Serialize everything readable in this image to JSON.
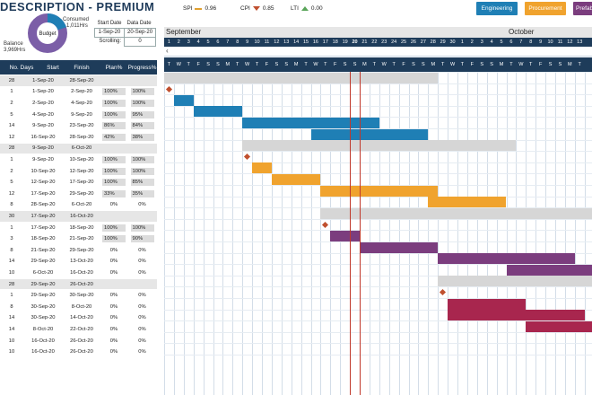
{
  "header": {
    "title": "DESCRIPTION - PREMIUM",
    "donut_label": "Budget",
    "consumed_label": "Consumed",
    "consumed_value": "1,011Hrs",
    "balance_label": "Balance",
    "balance_value": "3,969Hrs",
    "consumed_fraction": 0.2,
    "consumed_color": "#1f7fb5",
    "balance_color": "#7b5ea7"
  },
  "dates": {
    "start_label": "Start Date",
    "data_label": "Data Date",
    "start_value": "1-Sep-20",
    "data_value": "20-Sep-20",
    "scrolling_label": "Scrolling:",
    "scrolling_value": "0"
  },
  "kpis": [
    {
      "label": "SPI",
      "value": "0.96",
      "icon": "dash-icon",
      "color": "#e0a030"
    },
    {
      "label": "CPI",
      "value": "0.85",
      "icon": "down-triangle-icon",
      "color": "#c0502f"
    },
    {
      "label": "LTI",
      "value": "0.00",
      "icon": "up-triangle-icon",
      "color": "#5aa55a"
    }
  ],
  "buttons": [
    {
      "label": "Engineering",
      "color": "#1f7fb5"
    },
    {
      "label": "Procurement",
      "color": "#f0a32e"
    },
    {
      "label": "Prefab",
      "color": "#7b3d7e"
    }
  ],
  "table": {
    "headers": [
      "No. Days",
      "Start",
      "Finish",
      "Plan%",
      "Progress%"
    ],
    "rows": [
      {
        "days": "28",
        "start": "1-Sep-20",
        "finish": "28-Sep-20",
        "plan": "",
        "progress": "",
        "group": true
      },
      {
        "days": "1",
        "start": "1-Sep-20",
        "finish": "2-Sep-20",
        "plan": "100%",
        "progress": "100%"
      },
      {
        "days": "2",
        "start": "2-Sep-20",
        "finish": "4-Sep-20",
        "plan": "100%",
        "progress": "100%"
      },
      {
        "days": "5",
        "start": "4-Sep-20",
        "finish": "9-Sep-20",
        "plan": "100%",
        "progress": "95%"
      },
      {
        "days": "14",
        "start": "9-Sep-20",
        "finish": "23-Sep-20",
        "plan": "86%",
        "progress": "84%"
      },
      {
        "days": "12",
        "start": "16-Sep-20",
        "finish": "28-Sep-20",
        "plan": "42%",
        "progress": "38%"
      },
      {
        "days": "28",
        "start": "9-Sep-20",
        "finish": "6-Oct-20",
        "plan": "",
        "progress": "",
        "group": true
      },
      {
        "days": "1",
        "start": "9-Sep-20",
        "finish": "10-Sep-20",
        "plan": "100%",
        "progress": "100%"
      },
      {
        "days": "2",
        "start": "10-Sep-20",
        "finish": "12-Sep-20",
        "plan": "100%",
        "progress": "100%"
      },
      {
        "days": "5",
        "start": "12-Sep-20",
        "finish": "17-Sep-20",
        "plan": "100%",
        "progress": "85%"
      },
      {
        "days": "12",
        "start": "17-Sep-20",
        "finish": "29-Sep-20",
        "plan": "33%",
        "progress": "35%"
      },
      {
        "days": "8",
        "start": "28-Sep-20",
        "finish": "6-Oct-20",
        "plan": "0%",
        "progress": "0%"
      },
      {
        "days": "30",
        "start": "17-Sep-20",
        "finish": "16-Oct-20",
        "plan": "",
        "progress": "",
        "group": true
      },
      {
        "days": "1",
        "start": "17-Sep-20",
        "finish": "18-Sep-20",
        "plan": "100%",
        "progress": "100%"
      },
      {
        "days": "3",
        "start": "18-Sep-20",
        "finish": "21-Sep-20",
        "plan": "100%",
        "progress": "90%"
      },
      {
        "days": "8",
        "start": "21-Sep-20",
        "finish": "29-Sep-20",
        "plan": "0%",
        "progress": "0%"
      },
      {
        "days": "14",
        "start": "29-Sep-20",
        "finish": "13-Oct-20",
        "plan": "0%",
        "progress": "0%"
      },
      {
        "days": "10",
        "start": "6-Oct-20",
        "finish": "16-Oct-20",
        "plan": "0%",
        "progress": "0%"
      },
      {
        "days": "28",
        "start": "29-Sep-20",
        "finish": "26-Oct-20",
        "plan": "",
        "progress": "",
        "group": true
      },
      {
        "days": "1",
        "start": "29-Sep-20",
        "finish": "30-Sep-20",
        "plan": "0%",
        "progress": "0%"
      },
      {
        "days": "8",
        "start": "30-Sep-20",
        "finish": "8-Oct-20",
        "plan": "0%",
        "progress": "0%"
      },
      {
        "days": "14",
        "start": "30-Sep-20",
        "finish": "14-Oct-20",
        "plan": "0%",
        "progress": "0%"
      },
      {
        "days": "14",
        "start": "8-Oct-20",
        "finish": "22-Oct-20",
        "plan": "0%",
        "progress": "0%"
      },
      {
        "days": "10",
        "start": "16-Oct-20",
        "finish": "26-Oct-20",
        "plan": "0%",
        "progress": "0%"
      },
      {
        "days": "10",
        "start": "16-Oct-20",
        "finish": "26-Oct-20",
        "plan": "0%",
        "progress": "0%"
      }
    ]
  },
  "gantt": {
    "months": [
      "September",
      "October"
    ],
    "day_numbers": [
      "1",
      "2",
      "3",
      "4",
      "5",
      "6",
      "7",
      "8",
      "9",
      "10",
      "11",
      "12",
      "13",
      "14",
      "15",
      "16",
      "17",
      "18",
      "19",
      "20",
      "21",
      "22",
      "23",
      "24",
      "25",
      "26",
      "27",
      "28",
      "29",
      "30",
      "1",
      "2",
      "3",
      "4",
      "5",
      "6",
      "7",
      "8",
      "9",
      "10",
      "11",
      "12",
      "13"
    ],
    "day_letters": [
      "T",
      "W",
      "T",
      "F",
      "S",
      "S",
      "M",
      "T",
      "W",
      "T",
      "F",
      "S",
      "S",
      "M",
      "T",
      "W",
      "T",
      "F",
      "S",
      "S",
      "M",
      "T",
      "W",
      "T",
      "F",
      "S",
      "S",
      "M",
      "T",
      "W",
      "T",
      "F",
      "S",
      "S",
      "M",
      "T",
      "W",
      "T",
      "F",
      "S",
      "S",
      "M",
      "T"
    ],
    "nav_arrow": "‹",
    "data_date_day": 20,
    "group_color": "#d6d6d6",
    "milestone_color": "#c0502f",
    "bars": [
      {
        "row": 0,
        "start": 1,
        "end": 29,
        "color": "#d6d6d6"
      },
      {
        "row": 1,
        "milestone": 1
      },
      {
        "row": 2,
        "start": 2,
        "end": 4,
        "color": "#1f7fb5"
      },
      {
        "row": 3,
        "start": 4,
        "end": 9,
        "color": "#1f7fb5"
      },
      {
        "row": 4,
        "start": 9,
        "end": 23,
        "color": "#1f7fb5"
      },
      {
        "row": 5,
        "start": 16,
        "end": 28,
        "color": "#1f7fb5"
      },
      {
        "row": 6,
        "start": 9,
        "end": 37,
        "color": "#d6d6d6"
      },
      {
        "row": 7,
        "milestone": 9
      },
      {
        "row": 8,
        "start": 10,
        "end": 12,
        "color": "#f0a32e"
      },
      {
        "row": 9,
        "start": 12,
        "end": 17,
        "color": "#f0a32e"
      },
      {
        "row": 10,
        "start": 17,
        "end": 29,
        "color": "#f0a32e"
      },
      {
        "row": 11,
        "start": 28,
        "end": 36,
        "color": "#f0a32e"
      },
      {
        "row": 12,
        "start": 17,
        "end": 47,
        "color": "#d6d6d6"
      },
      {
        "row": 13,
        "milestone": 17
      },
      {
        "row": 14,
        "start": 18,
        "end": 21,
        "color": "#7b3d7e"
      },
      {
        "row": 15,
        "start": 21,
        "end": 29,
        "color": "#7b3d7e"
      },
      {
        "row": 16,
        "start": 29,
        "end": 43,
        "color": "#7b3d7e"
      },
      {
        "row": 17,
        "start": 36,
        "end": 46,
        "color": "#7b3d7e"
      },
      {
        "row": 18,
        "start": 29,
        "end": 56,
        "color": "#d6d6d6"
      },
      {
        "row": 19,
        "milestone": 29
      },
      {
        "row": 20,
        "start": 30,
        "end": 38,
        "color": "#a8264e"
      },
      {
        "row": 21,
        "start": 30,
        "end": 44,
        "color": "#a8264e"
      },
      {
        "row": 22,
        "start": 38,
        "end": 52,
        "color": "#a8264e"
      }
    ]
  }
}
